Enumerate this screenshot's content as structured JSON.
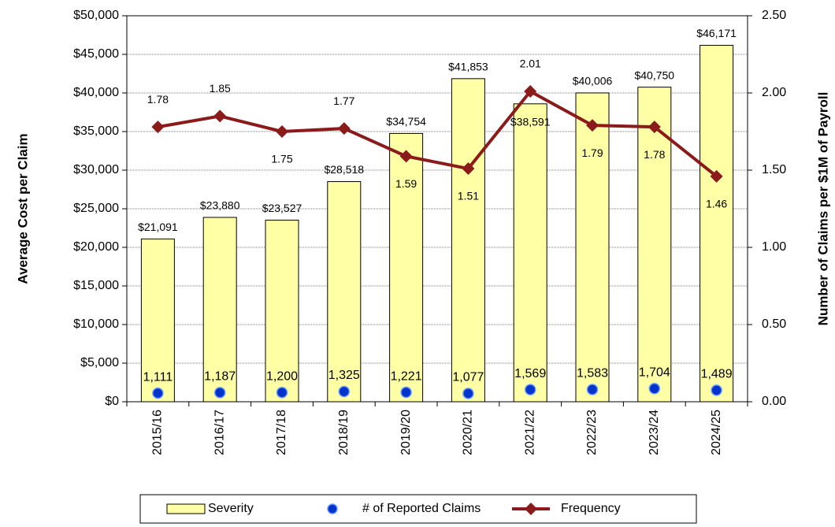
{
  "chart_data": {
    "type": "bar",
    "categories": [
      "2015/16",
      "2016/17",
      "2017/18",
      "2018/19",
      "2019/20",
      "2020/21",
      "2021/22",
      "2022/23",
      "2023/24",
      "2024/25"
    ],
    "ylabel": "Average Cost per Claim",
    "y2label": "Number of Claims per $1M of Payroll",
    "ylim": [
      0,
      50000
    ],
    "yticks": [
      {
        "value": 0,
        "label": "$0"
      },
      {
        "value": 5000,
        "label": "$5,000"
      },
      {
        "value": 10000,
        "label": "$10,000"
      },
      {
        "value": 15000,
        "label": "$15,000"
      },
      {
        "value": 20000,
        "label": "$20,000"
      },
      {
        "value": 25000,
        "label": "$25,000"
      },
      {
        "value": 30000,
        "label": "$30,000"
      },
      {
        "value": 35000,
        "label": "$35,000"
      },
      {
        "value": 40000,
        "label": "$40,000"
      },
      {
        "value": 45000,
        "label": "$45,000"
      },
      {
        "value": 50000,
        "label": "$50,000"
      }
    ],
    "y2lim": [
      0,
      2.5
    ],
    "y2ticks": [
      {
        "value": 0,
        "label": "0.00"
      },
      {
        "value": 0.5,
        "label": "0.50"
      },
      {
        "value": 1,
        "label": "1.00"
      },
      {
        "value": 1.5,
        "label": "1.50"
      },
      {
        "value": 2,
        "label": "2.00"
      },
      {
        "value": 2.5,
        "label": "2.50"
      }
    ],
    "grid": true,
    "legend": "bottom",
    "series": [
      {
        "name": "Severity",
        "type": "bar",
        "color": "#ffffa6",
        "values": [
          21091,
          23880,
          23527,
          28518,
          34754,
          41853,
          38591,
          40006,
          40750,
          46171
        ],
        "value_labels": [
          "$21,091",
          "$23,880",
          "$23,527",
          "$28,518",
          "$34,754",
          "$41,853",
          "$38,591",
          "$40,006",
          "$40,750",
          "$46,171"
        ]
      },
      {
        "name": "# of Reported Claims",
        "type": "scatter",
        "color": "#0033cc",
        "values": [
          1111,
          1187,
          1200,
          1325,
          1221,
          1077,
          1569,
          1583,
          1704,
          1489
        ],
        "value_labels": [
          "1,111",
          "1,187",
          "1,200",
          "1,325",
          "1,221",
          "1,077",
          "1,569",
          "1,583",
          "1,704",
          "1,489"
        ]
      },
      {
        "name": "Frequency",
        "type": "line",
        "color": "#8b1a1a",
        "axis": "y2",
        "values": [
          1.78,
          1.85,
          1.75,
          1.77,
          1.59,
          1.51,
          2.01,
          1.79,
          1.78,
          1.46
        ]
      }
    ]
  }
}
